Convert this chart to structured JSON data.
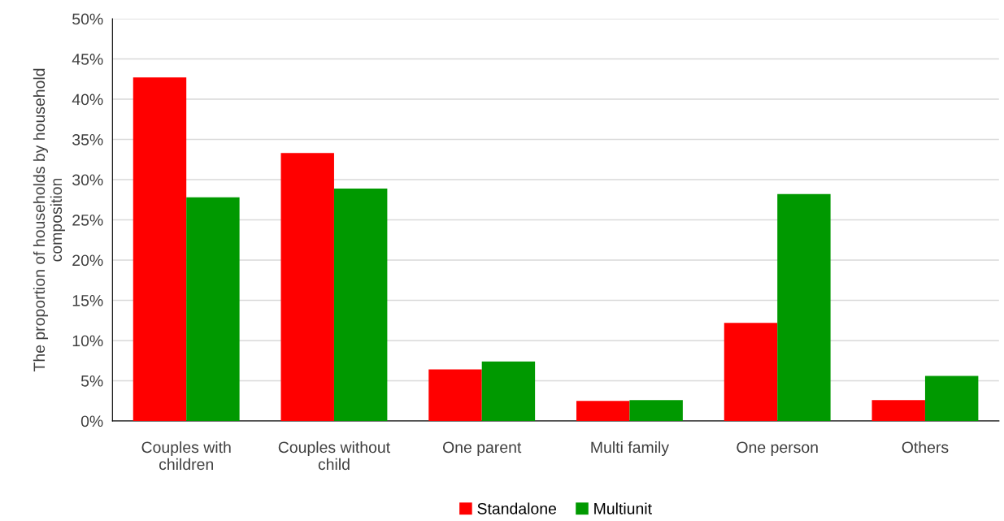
{
  "chart_data": {
    "type": "bar",
    "ylabel": "The proportion of households by household\ncomposition",
    "categories": [
      "Couples with\nchildren",
      "Couples without\nchild",
      "One parent",
      "Multi family",
      "One person",
      "Others"
    ],
    "series": [
      {
        "name": "Standalone",
        "color": "#ff0000",
        "values": [
          42.7,
          33.3,
          6.4,
          2.5,
          12.2,
          2.6
        ]
      },
      {
        "name": "Multiunit",
        "color": "#009900",
        "values": [
          27.8,
          28.9,
          7.4,
          2.6,
          28.2,
          5.6
        ]
      }
    ],
    "ylim": [
      0,
      50
    ],
    "yticks": [
      {
        "value": 0,
        "label": "0%"
      },
      {
        "value": 5,
        "label": "5%"
      },
      {
        "value": 10,
        "label": "10%"
      },
      {
        "value": 15,
        "label": "15%"
      },
      {
        "value": 20,
        "label": "20%"
      },
      {
        "value": 25,
        "label": "25%"
      },
      {
        "value": 30,
        "label": "30%"
      },
      {
        "value": 35,
        "label": "35%"
      },
      {
        "value": 40,
        "label": "40%"
      },
      {
        "value": 45,
        "label": "45%"
      },
      {
        "value": 50,
        "label": "50%"
      }
    ],
    "grid": "y",
    "legend": "bottom"
  }
}
